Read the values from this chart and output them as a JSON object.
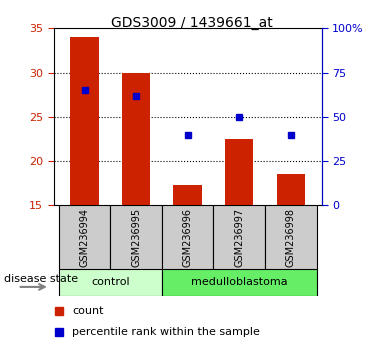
{
  "title": "GDS3009 / 1439661_at",
  "samples": [
    "GSM236994",
    "GSM236995",
    "GSM236996",
    "GSM236997",
    "GSM236998"
  ],
  "bar_values": [
    34.0,
    30.0,
    17.3,
    22.5,
    18.5
  ],
  "bar_bottom": 15,
  "bar_color": "#cc2200",
  "percentile_values": [
    65,
    62,
    40,
    50,
    40
  ],
  "percentile_color": "#0000cc",
  "ylim_left": [
    15,
    35
  ],
  "ylim_right": [
    0,
    100
  ],
  "yticks_left": [
    15,
    20,
    25,
    30,
    35
  ],
  "yticks_right": [
    0,
    25,
    50,
    75,
    100
  ],
  "ytick_labels_right": [
    "0",
    "25",
    "50",
    "75",
    "100%"
  ],
  "grid_values": [
    20,
    25,
    30
  ],
  "control_color": "#ccffcc",
  "medulloblastoma_color": "#66ee66",
  "disease_label": "disease state",
  "control_label": "control",
  "medulloblastoma_label": "medulloblastoma",
  "legend_count_label": "count",
  "legend_percentile_label": "percentile rank within the sample",
  "bar_width": 0.55,
  "background_color": "#cccccc",
  "plot_bg_color": "#ffffff"
}
